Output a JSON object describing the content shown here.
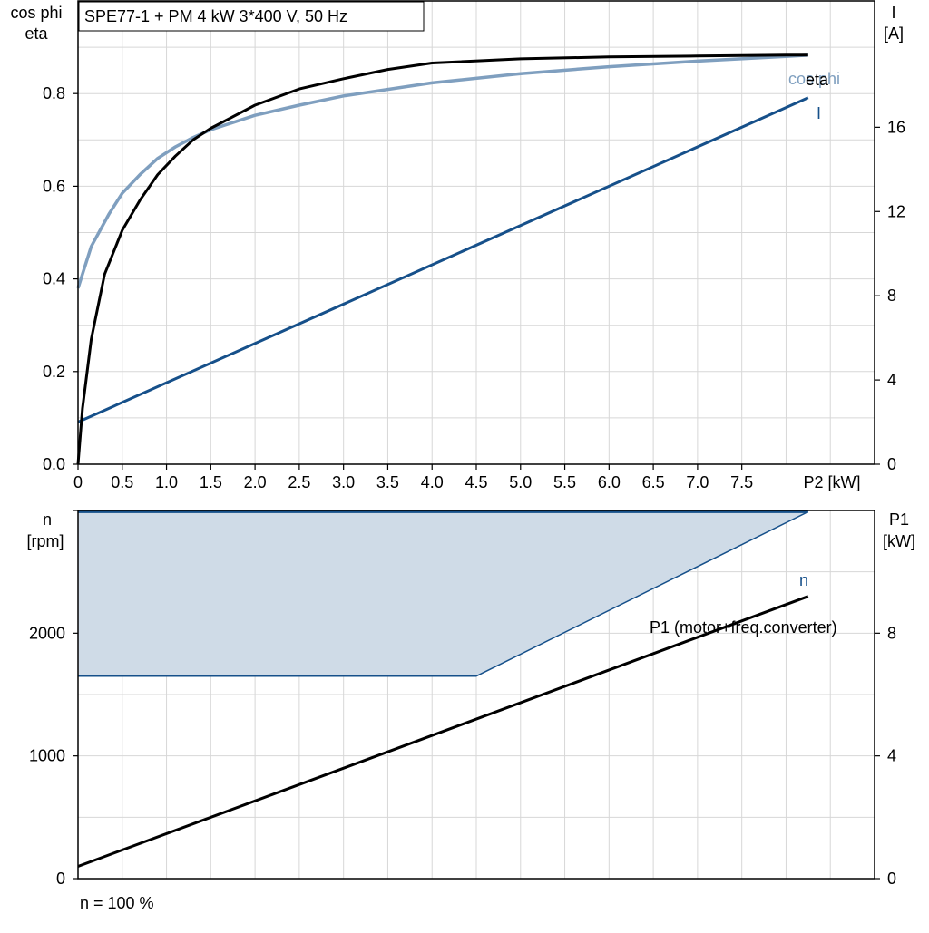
{
  "colors": {
    "eta": "#000000",
    "cos_phi": "#7f9fbf",
    "current": "#16508a",
    "speed": "#16508a",
    "speed_band_fill": "#cfdbe7",
    "p1": "#000000",
    "grid": "#d7d7d7"
  },
  "chart_data": [
    {
      "type": "line",
      "title": "SPE77-1 + PM   4 kW   3*400 V, 50 Hz",
      "xlabel": "P2 [kW]",
      "x_ticks": [
        "0",
        "0.5",
        "1.0",
        "1.5",
        "2.0",
        "2.5",
        "3.0",
        "3.5",
        "4.0",
        "4.5",
        "5.0",
        "5.5",
        "6.0",
        "6.5",
        "7.0",
        "7.5"
      ],
      "xlim": [
        0,
        9
      ],
      "ylabel_left": [
        "cos phi",
        "eta"
      ],
      "ylim_left": [
        0,
        1.0
      ],
      "y_ticks_left": [
        "0.0",
        "0.2",
        "0.4",
        "0.6",
        "0.8"
      ],
      "ylabel_right": [
        "I",
        "[A]"
      ],
      "ylim_right": [
        0,
        22
      ],
      "y_ticks_right": [
        "0",
        "4",
        "8",
        "12",
        "16"
      ],
      "grid": true,
      "series": [
        {
          "name": "eta",
          "axis": "left",
          "x": [
            0,
            0.05,
            0.15,
            0.3,
            0.5,
            0.7,
            0.9,
            1.1,
            1.3,
            1.5,
            2.0,
            2.5,
            3.0,
            3.5,
            4.0,
            5.0,
            6.0,
            7.0,
            8.0,
            8.25
          ],
          "y": [
            0,
            0.12,
            0.27,
            0.41,
            0.505,
            0.57,
            0.625,
            0.665,
            0.7,
            0.725,
            0.775,
            0.81,
            0.832,
            0.852,
            0.866,
            0.875,
            0.879,
            0.881,
            0.883,
            0.883
          ]
        },
        {
          "name": "cos phi",
          "axis": "left",
          "x": [
            0,
            0.15,
            0.35,
            0.5,
            0.7,
            0.9,
            1.1,
            1.3,
            1.5,
            2.0,
            2.5,
            3.0,
            4.0,
            5.0,
            6.0,
            7.0,
            8.0,
            8.25
          ],
          "y": [
            0.38,
            0.47,
            0.54,
            0.585,
            0.625,
            0.66,
            0.685,
            0.705,
            0.722,
            0.753,
            0.775,
            0.795,
            0.823,
            0.843,
            0.858,
            0.87,
            0.88,
            0.883
          ]
        },
        {
          "name": "I",
          "axis": "right",
          "x": [
            0,
            8.25
          ],
          "y": [
            2.0,
            17.4
          ]
        }
      ]
    },
    {
      "type": "area",
      "xlim": [
        0,
        9
      ],
      "ylabel_left": [
        "n",
        "[rpm]"
      ],
      "ylim_left": [
        0,
        3000
      ],
      "y_ticks_left": [
        "0",
        "1000",
        "2000"
      ],
      "ylabel_right": [
        "P1",
        "[kW]"
      ],
      "ylim_right": [
        0,
        12
      ],
      "y_ticks_right": [
        "0",
        "4",
        "8"
      ],
      "grid": true,
      "footnote": "n = 100 %",
      "series": [
        {
          "name": "n",
          "axis": "left",
          "x": [
            0,
            8.25
          ],
          "y": [
            2990,
            2990
          ]
        },
        {
          "axis": "left",
          "x": [
            0,
            4.5,
            8.25
          ],
          "y": [
            1650,
            1650,
            2990
          ]
        },
        {
          "name": "P1 (motor+freq.converter)",
          "axis": "right",
          "x": [
            0,
            8.25
          ],
          "y": [
            0.4,
            9.2
          ]
        }
      ]
    }
  ]
}
